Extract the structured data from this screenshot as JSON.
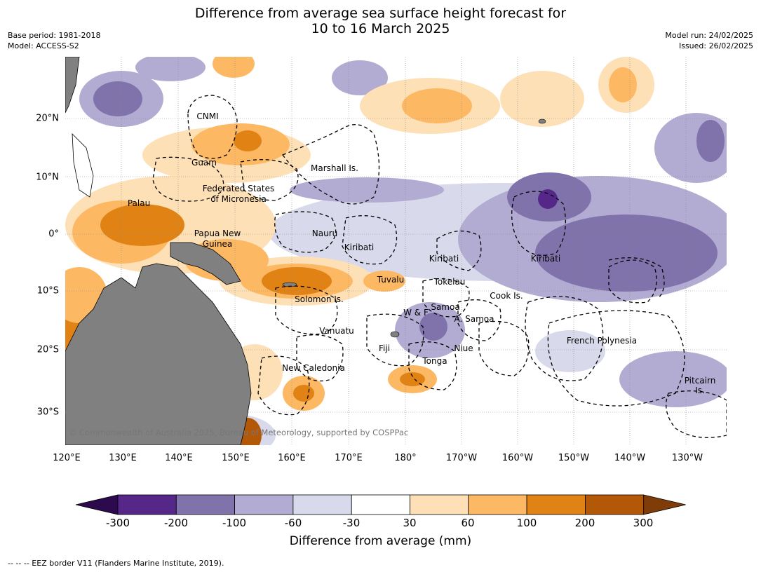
{
  "title": {
    "line1": "Difference from average sea surface height forecast for",
    "line2": "10 to 16 March 2025"
  },
  "meta_left": {
    "base_period": "Base period: 1981-2018",
    "model": "Model: ACCESS-S2"
  },
  "meta_right": {
    "model_run": "Model run: 24/02/2025",
    "issued": "Issued: 26/02/2025"
  },
  "longitude_labels": [
    "120°E",
    "130°E",
    "140°E",
    "150°E",
    "160°E",
    "170°E",
    "180°",
    "170°W",
    "160°W",
    "150°W",
    "140°W",
    "130°W"
  ],
  "latitude_labels": [
    "20°N",
    "10°N",
    "0°",
    "10°S",
    "20°S",
    "30°S"
  ],
  "places": [
    "CNMI",
    "Guam",
    "Marshall Is.",
    "Federated States",
    "of Micronesia",
    "Palau",
    "Nauru",
    "Papua New",
    "Guinea",
    "Kiribati",
    "Kiribati",
    "Kiribati",
    "Tuvalu",
    "Tokelau",
    "Solomon Is.",
    "Cook Is.",
    "W & F",
    "Samoa",
    "A. Samoa",
    "Vanuatu",
    "Fiji",
    "Niue",
    "Tonga",
    "French Polynesia",
    "New Caledonia",
    "Pitcairn",
    "Is."
  ],
  "copyright": "© Commonwealth of Australia 2025, Bureau of Meteorology, supported by COSPPac",
  "colorbar": {
    "ticks": [
      "-300",
      "-200",
      "-100",
      "-60",
      "-30",
      "30",
      "60",
      "100",
      "200",
      "300"
    ],
    "colors": [
      "#2d0a4e",
      "#542788",
      "#8073ac",
      "#b2abd2",
      "#d8daeb",
      "#ffffff",
      "#fee0b6",
      "#fdb863",
      "#e08214",
      "#b35806",
      "#7f3b08"
    ],
    "label": "Difference from average (mm)"
  },
  "land_color": "#808080",
  "footnote": "--  --  -- EEZ border V11 (Flanders Marine Institute, 2019)."
}
